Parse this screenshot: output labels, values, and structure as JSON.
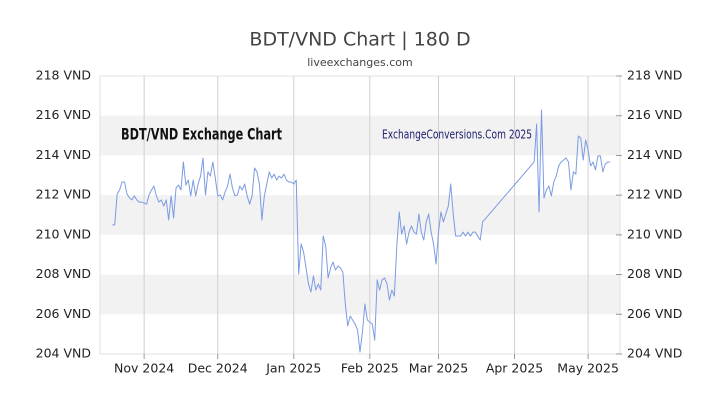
{
  "chart_data": {
    "type": "line",
    "title": "BDT/VND Chart | 180 D",
    "subtitle": "liveexchanges.com",
    "annotations": [
      "BDT/VND Exchange Chart",
      "ExchangeConversions.Com 2025"
    ],
    "xlim": [
      -5,
      207
    ],
    "xticks": [
      {
        "value": 13,
        "label": "Nov 2024"
      },
      {
        "value": 43,
        "label": "Dec 2024"
      },
      {
        "value": 74,
        "label": "Jan 2025"
      },
      {
        "value": 105,
        "label": "Feb 2025"
      },
      {
        "value": 133,
        "label": "Mar 2025"
      },
      {
        "value": 164,
        "label": "Apr 2025"
      },
      {
        "value": 194,
        "label": "May 2025"
      }
    ],
    "ylim": [
      204,
      218
    ],
    "yticks": [
      {
        "value": 204,
        "label": "204 VND"
      },
      {
        "value": 206,
        "label": "206 VND"
      },
      {
        "value": 208,
        "label": "208 VND"
      },
      {
        "value": 210,
        "label": "210 VND"
      },
      {
        "value": 212,
        "label": "212 VND"
      },
      {
        "value": 214,
        "label": "214 VND"
      },
      {
        "value": 216,
        "label": "216 VND"
      },
      {
        "value": 218,
        "label": "218 VND"
      }
    ],
    "grid": true,
    "grid_bands": true,
    "x": [
      0,
      1,
      2,
      3,
      4,
      5,
      6,
      7,
      8,
      9,
      10,
      11,
      12,
      13,
      14,
      15,
      16,
      17,
      18,
      19,
      20,
      21,
      22,
      23,
      24,
      25,
      26,
      27,
      28,
      29,
      30,
      31,
      32,
      33,
      34,
      35,
      36,
      37,
      38,
      39,
      40,
      41,
      42,
      43,
      44,
      45,
      46,
      47,
      48,
      49,
      50,
      51,
      52,
      53,
      54,
      55,
      56,
      57,
      58,
      59,
      60,
      61,
      62,
      63,
      64,
      65,
      66,
      67,
      68,
      69,
      70,
      71,
      72,
      73,
      74,
      75,
      76,
      77,
      78,
      79,
      80,
      81,
      82,
      83,
      84,
      85,
      86,
      87,
      88,
      89,
      90,
      91,
      92,
      93,
      94,
      95,
      96,
      97,
      98,
      99,
      100,
      101,
      102,
      103,
      104,
      105,
      106,
      107,
      108,
      109,
      110,
      111,
      112,
      113,
      114,
      115,
      116,
      117,
      118,
      119,
      120,
      121,
      122,
      123,
      124,
      125,
      126,
      127,
      128,
      129,
      130,
      131,
      132,
      133,
      134,
      135,
      136,
      137,
      138,
      139,
      140,
      141,
      142,
      143,
      144,
      145,
      146,
      147,
      148,
      149,
      150,
      151,
      172,
      173,
      174,
      175,
      176,
      177,
      178,
      179,
      180,
      181,
      182,
      183,
      184,
      185,
      186,
      187,
      188,
      189,
      190,
      191,
      192,
      193,
      194,
      195,
      196,
      197,
      198,
      199,
      200,
      201,
      202,
      203
    ],
    "series": [
      {
        "name": "BDT/VND",
        "color": "#7c9be3",
        "values": [
          210.5,
          210.5,
          212.06,
          212.26,
          212.66,
          212.66,
          212.06,
          211.86,
          211.76,
          211.96,
          211.76,
          211.65,
          211.65,
          211.6,
          211.55,
          212.01,
          212.26,
          212.46,
          211.96,
          211.65,
          211.76,
          211.45,
          211.76,
          210.75,
          211.96,
          210.85,
          212.36,
          212.51,
          212.26,
          213.67,
          212.51,
          212.76,
          211.96,
          212.76,
          211.96,
          212.56,
          212.96,
          213.87,
          212.01,
          213.17,
          212.96,
          213.67,
          212.86,
          211.96,
          212.01,
          211.76,
          212.16,
          212.46,
          213.06,
          212.36,
          211.96,
          212.01,
          212.46,
          212.26,
          212.56,
          211.96,
          211.55,
          211.96,
          213.37,
          213.17,
          212.56,
          210.75,
          211.96,
          212.56,
          213.17,
          212.86,
          213.06,
          212.76,
          212.96,
          212.86,
          213.06,
          212.76,
          212.66,
          212.66,
          212.56,
          212.76,
          208.03,
          209.54,
          209.14,
          208.33,
          207.53,
          207.12,
          207.93,
          207.22,
          207.53,
          207.22,
          209.94,
          209.44,
          207.83,
          208.33,
          208.63,
          208.23,
          208.43,
          208.33,
          208.13,
          206.52,
          205.41,
          205.91,
          205.71,
          205.51,
          205.21,
          204.1,
          205.11,
          206.52,
          205.71,
          205.61,
          205.51,
          204.7,
          207.73,
          207.22,
          207.73,
          207.83,
          207.53,
          206.72,
          207.22,
          206.92,
          209.44,
          211.15,
          210.04,
          210.45,
          209.54,
          210.14,
          210.45,
          210.14,
          210.04,
          211.05,
          210.14,
          209.74,
          210.65,
          211.05,
          210.14,
          209.54,
          208.53,
          210.14,
          211.15,
          210.65,
          211.05,
          211.45,
          212.56,
          211.05,
          209.94,
          209.94,
          209.94,
          210.14,
          209.94,
          210.14,
          209.94,
          210.14,
          210.14,
          209.94,
          209.74,
          210.65,
          213.67,
          215.58,
          211.15,
          216.29,
          211.86,
          212.26,
          212.46,
          211.96,
          212.66,
          212.96,
          213.47,
          213.67,
          213.77,
          213.87,
          213.67,
          212.26,
          213.17,
          213.06,
          214.98,
          214.88,
          213.77,
          214.78,
          214.27,
          213.47,
          213.67,
          213.27,
          213.97,
          213.97,
          213.17,
          213.57,
          213.67,
          213.67
        ]
      }
    ]
  }
}
